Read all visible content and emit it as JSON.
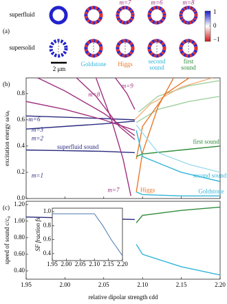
{
  "panel_a": {
    "panel_label": "(a)",
    "row_labels": [
      "superfluid",
      "supersolid"
    ],
    "scale_bar": "2 μm",
    "top_labels": [
      {
        "text": "m=7",
        "color": "#a0307f"
      },
      {
        "text": "m=6",
        "color": "#a0307f"
      },
      {
        "text": "m=8",
        "color": "#a0307f"
      }
    ],
    "bottom_labels": [
      {
        "lines": [
          "Goldstone"
        ],
        "color": "#30b5d8"
      },
      {
        "lines": [
          "Higgs"
        ],
        "color": "#e8782a"
      },
      {
        "lines": [
          "second",
          "sound"
        ],
        "color": "#30b5d8"
      },
      {
        "lines": [
          "first",
          "sound"
        ],
        "color": "#2e8b3a"
      }
    ],
    "colorbar": {
      "ticks": [
        1,
        0,
        {
          "value": -1,
          "label": "−1"
        }
      ]
    }
  },
  "chart_data": [
    {
      "type": "line",
      "panel_label": "(b)",
      "y_label": "excitation energy ω/ωᵣ",
      "xlim": [
        1.95,
        2.2
      ],
      "ylim": [
        0,
        0.92
      ],
      "xticks": [
        1.95,
        2,
        2.05,
        2.1,
        2.15,
        2.2
      ],
      "yticks": [
        {
          "value": 0,
          "label": "0.0"
        },
        0.2,
        0.4,
        0.6,
        0.8
      ],
      "series": [
        {
          "color": "#2a2a7f",
          "x": [
            1.95,
            2.0,
            2.05,
            2.09
          ],
          "values": [
            0.37,
            0.365,
            0.36,
            0.35
          ]
        },
        {
          "color": "#2a2a7f",
          "x": [
            1.95,
            2.0,
            2.05,
            2.09
          ],
          "values": [
            0.53,
            0.55,
            0.57,
            0.59
          ]
        },
        {
          "color": "#2a2a7f",
          "x": [
            1.95,
            2.0,
            2.05,
            2.09
          ],
          "values": [
            0.63,
            0.62,
            0.61,
            0.6
          ]
        },
        {
          "color": "#a0307f",
          "x": [
            1.95,
            2.0,
            2.05,
            2.09
          ],
          "values": [
            0.74,
            0.68,
            0.6,
            0.52
          ]
        },
        {
          "color": "#a0307f",
          "x": [
            1.965,
            2.0,
            2.05,
            2.09
          ],
          "values": [
            0.92,
            0.82,
            0.65,
            0.48
          ]
        },
        {
          "color": "#a0307f",
          "x": [
            2.04,
            2.06,
            2.075,
            2.085
          ],
          "values": [
            0.92,
            0.6,
            0.3,
            0.02
          ]
        },
        {
          "color": "#a0307f",
          "x": [
            2.015,
            2.04,
            2.07,
            2.09
          ],
          "values": [
            0.92,
            0.78,
            0.55,
            0.45
          ]
        },
        {
          "color": "#a0307f",
          "x": [
            2.065,
            2.08,
            2.09
          ],
          "values": [
            0.92,
            0.8,
            0.68
          ]
        },
        {
          "color": "#9fd09f",
          "x": [
            2.092,
            2.12,
            2.16,
            2.2
          ],
          "values": [
            0.58,
            0.68,
            0.74,
            0.78
          ]
        },
        {
          "color": "#9fd09f",
          "x": [
            2.095,
            2.12,
            2.16,
            2.2
          ],
          "values": [
            0.66,
            0.78,
            0.86,
            0.9
          ]
        },
        {
          "color": "#f4b07a",
          "x": [
            2.09,
            2.11,
            2.15,
            2.19
          ],
          "values": [
            0.6,
            0.72,
            0.85,
            0.92
          ]
        },
        {
          "color": "#e8782a",
          "x": [
            2.092,
            2.1,
            2.12,
            2.14
          ],
          "values": [
            0.05,
            0.35,
            0.7,
            0.92
          ]
        },
        {
          "color": "#e8782a",
          "x": [
            2.092,
            2.1,
            2.13,
            2.16
          ],
          "values": [
            0.3,
            0.55,
            0.8,
            0.92
          ]
        },
        {
          "color": "#2e8b3a",
          "x": [
            2.092,
            2.1,
            2.15,
            2.2
          ],
          "values": [
            0.32,
            0.34,
            0.37,
            0.4
          ]
        },
        {
          "color": "#9fdcec",
          "x": [
            2.092,
            2.12,
            2.16,
            2.2
          ],
          "values": [
            0.56,
            0.35,
            0.26,
            0.2
          ]
        },
        {
          "color": "#30b5d8",
          "x": [
            2.092,
            2.1,
            2.15,
            2.2
          ],
          "values": [
            0.52,
            0.32,
            0.2,
            0.13
          ]
        },
        {
          "color": "#30b5d8",
          "x": [
            2.092,
            2.1,
            2.15,
            2.2
          ],
          "values": [
            0.05,
            0.03,
            0.02,
            0.02
          ]
        }
      ],
      "annotations": [
        {
          "text": "m=8",
          "color": "#a0307f"
        },
        {
          "text": "m=9",
          "color": "#a0307f"
        },
        {
          "text": "m=6",
          "color": "#2a2a7f"
        },
        {
          "text": "m=3",
          "color": "#2a2a7f"
        },
        {
          "text": "m=2",
          "color": "#2a2a7f"
        },
        {
          "text": "m=1",
          "color": "#2a2a7f"
        },
        {
          "text": "superfluid sound",
          "color": "#2a2a7f"
        },
        {
          "text": "first sound",
          "color": "#2e8b3a"
        },
        {
          "text": "second sound",
          "color": "#30b5d8"
        },
        {
          "text": "Higgs",
          "color": "#e8782a"
        },
        {
          "text": "Goldstone",
          "color": "#30b5d8"
        },
        {
          "text": "m=7",
          "color": "#a0307f"
        }
      ]
    },
    {
      "type": "line",
      "panel_label": "(c)",
      "y_label": "speed of sound c/c₀",
      "x_label": "relative dipolar strength ϵdd",
      "xlim": [
        1.95,
        2.2
      ],
      "ylim": [
        0.3,
        1.24
      ],
      "xticks": [
        1.95,
        {
          "value": 2,
          "label": "2.00"
        },
        2.05,
        {
          "value": 2.1,
          "label": "2.10"
        },
        2.15,
        {
          "value": 2.2,
          "label": "2.20"
        }
      ],
      "yticks": [
        {
          "value": 0.4,
          "label": "0.40"
        },
        {
          "value": 0.6,
          "label": "0.60"
        },
        {
          "value": 0.8,
          "label": "0.80"
        },
        {
          "value": 1,
          "label": "1.00"
        },
        {
          "value": 1.2,
          "label": "1.20"
        }
      ],
      "series": [
        {
          "color": "#2a2a7f",
          "x": [
            1.95,
            2.0,
            2.05,
            2.09
          ],
          "values": [
            1.05,
            1.04,
            1.03,
            1.02
          ]
        },
        {
          "color": "#2e8b3a",
          "x": [
            2.092,
            2.1,
            2.15,
            2.2
          ],
          "values": [
            0.98,
            1.07,
            1.13,
            1.17
          ]
        },
        {
          "color": "#30b5d8",
          "x": [
            2.092,
            2.1,
            2.15,
            2.2
          ],
          "values": [
            0.72,
            0.6,
            0.45,
            0.35
          ]
        }
      ]
    },
    {
      "type": "line",
      "y_label": "SF fraction fs",
      "xlim": [
        1.95,
        2.2
      ],
      "ylim": [
        0.3,
        1.05
      ],
      "xticks": [
        1.95,
        {
          "value": 2,
          "label": "2.00"
        },
        2.05,
        {
          "value": 2.1,
          "label": "2.10"
        },
        2.15,
        {
          "value": 2.2,
          "label": "2.20"
        }
      ],
      "yticks": [
        0.4,
        0.6,
        0.8,
        {
          "value": 1,
          "label": "1.0"
        }
      ],
      "series": [
        {
          "color": "#4a78b0",
          "x": [
            1.95,
            2.0,
            2.05,
            2.1,
            2.13,
            2.16,
            2.2
          ],
          "values": [
            0.97,
            0.97,
            0.97,
            0.97,
            0.8,
            0.6,
            0.37
          ]
        }
      ]
    }
  ]
}
